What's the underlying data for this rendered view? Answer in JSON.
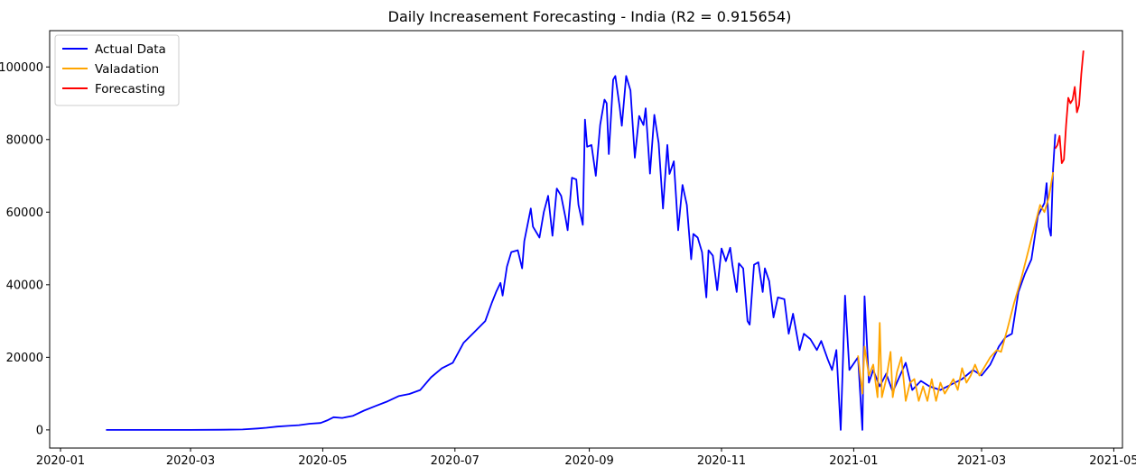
{
  "chart_data": {
    "type": "line",
    "title": "Daily Increasement Forecasting - India (R2 = 0.915654)",
    "xlabel": "",
    "ylabel": "",
    "x_range": [
      "2019-12-27",
      "2021-05-05"
    ],
    "ylim": [
      -5000,
      110000
    ],
    "x_ticks": [
      "2020-01",
      "2020-03",
      "2020-05",
      "2020-07",
      "2020-09",
      "2020-11",
      "2021-01",
      "2021-03",
      "2021-05"
    ],
    "y_ticks": [
      0,
      20000,
      40000,
      60000,
      80000,
      100000
    ],
    "grid": false,
    "legend_placement": "top-left",
    "series": [
      {
        "name": "Actual Data",
        "color": "#0000ff",
        "points": [
          [
            "2020-01-22",
            0
          ],
          [
            "2020-02-15",
            0
          ],
          [
            "2020-03-01",
            0
          ],
          [
            "2020-03-15",
            50
          ],
          [
            "2020-03-25",
            120
          ],
          [
            "2020-04-01",
            400
          ],
          [
            "2020-04-05",
            600
          ],
          [
            "2020-04-10",
            900
          ],
          [
            "2020-04-15",
            1100
          ],
          [
            "2020-04-20",
            1300
          ],
          [
            "2020-04-25",
            1700
          ],
          [
            "2020-04-30",
            1900
          ],
          [
            "2020-05-03",
            2600
          ],
          [
            "2020-05-06",
            3500
          ],
          [
            "2020-05-10",
            3300
          ],
          [
            "2020-05-15",
            3900
          ],
          [
            "2020-05-20",
            5300
          ],
          [
            "2020-05-25",
            6500
          ],
          [
            "2020-05-31",
            7900
          ],
          [
            "2020-06-05",
            9300
          ],
          [
            "2020-06-10",
            9900
          ],
          [
            "2020-06-15",
            11000
          ],
          [
            "2020-06-20",
            14500
          ],
          [
            "2020-06-25",
            17000
          ],
          [
            "2020-06-30",
            18500
          ],
          [
            "2020-07-05",
            24000
          ],
          [
            "2020-07-10",
            27000
          ],
          [
            "2020-07-15",
            30000
          ],
          [
            "2020-07-18",
            35000
          ],
          [
            "2020-07-20",
            38000
          ],
          [
            "2020-07-22",
            40500
          ],
          [
            "2020-07-23",
            37000
          ],
          [
            "2020-07-25",
            45000
          ],
          [
            "2020-07-27",
            49000
          ],
          [
            "2020-07-30",
            49500
          ],
          [
            "2020-08-01",
            44500
          ],
          [
            "2020-08-02",
            52000
          ],
          [
            "2020-08-05",
            61000
          ],
          [
            "2020-08-06",
            56000
          ],
          [
            "2020-08-09",
            53000
          ],
          [
            "2020-08-11",
            60000
          ],
          [
            "2020-08-13",
            64500
          ],
          [
            "2020-08-15",
            53500
          ],
          [
            "2020-08-17",
            66500
          ],
          [
            "2020-08-19",
            64500
          ],
          [
            "2020-08-21",
            58500
          ],
          [
            "2020-08-22",
            55000
          ],
          [
            "2020-08-24",
            69500
          ],
          [
            "2020-08-26",
            69000
          ],
          [
            "2020-08-27",
            62000
          ],
          [
            "2020-08-29",
            56500
          ],
          [
            "2020-08-30",
            85500
          ],
          [
            "2020-08-31",
            78000
          ],
          [
            "2020-09-02",
            78500
          ],
          [
            "2020-09-04",
            70000
          ],
          [
            "2020-09-06",
            84000
          ],
          [
            "2020-09-08",
            91000
          ],
          [
            "2020-09-09",
            90000
          ],
          [
            "2020-09-10",
            76000
          ],
          [
            "2020-09-12",
            96500
          ],
          [
            "2020-09-13",
            97500
          ],
          [
            "2020-09-15",
            89000
          ],
          [
            "2020-09-16",
            83800
          ],
          [
            "2020-09-18",
            97500
          ],
          [
            "2020-09-20",
            93500
          ],
          [
            "2020-09-22",
            75000
          ],
          [
            "2020-09-24",
            86500
          ],
          [
            "2020-09-26",
            84000
          ],
          [
            "2020-09-27",
            88600
          ],
          [
            "2020-09-29",
            70600
          ],
          [
            "2020-10-01",
            86800
          ],
          [
            "2020-10-03",
            79000
          ],
          [
            "2020-10-05",
            61000
          ],
          [
            "2020-10-07",
            78500
          ],
          [
            "2020-10-08",
            70500
          ],
          [
            "2020-10-10",
            74000
          ],
          [
            "2020-10-12",
            55000
          ],
          [
            "2020-10-14",
            67500
          ],
          [
            "2020-10-16",
            62000
          ],
          [
            "2020-10-18",
            47000
          ],
          [
            "2020-10-19",
            54000
          ],
          [
            "2020-10-21",
            53000
          ],
          [
            "2020-10-23",
            49000
          ],
          [
            "2020-10-25",
            36500
          ],
          [
            "2020-10-26",
            49500
          ],
          [
            "2020-10-28",
            48000
          ],
          [
            "2020-10-30",
            38500
          ],
          [
            "2020-11-01",
            50000
          ],
          [
            "2020-11-03",
            46500
          ],
          [
            "2020-11-05",
            50200
          ],
          [
            "2020-11-06",
            45600
          ],
          [
            "2020-11-08",
            38000
          ],
          [
            "2020-11-09",
            45900
          ],
          [
            "2020-11-11",
            44500
          ],
          [
            "2020-11-13",
            30000
          ],
          [
            "2020-11-14",
            29000
          ],
          [
            "2020-11-16",
            45500
          ],
          [
            "2020-11-18",
            46200
          ],
          [
            "2020-11-20",
            38000
          ],
          [
            "2020-11-21",
            44500
          ],
          [
            "2020-11-23",
            41000
          ],
          [
            "2020-11-25",
            31000
          ],
          [
            "2020-11-27",
            36500
          ],
          [
            "2020-11-30",
            36000
          ],
          [
            "2020-12-02",
            26500
          ],
          [
            "2020-12-04",
            32000
          ],
          [
            "2020-12-07",
            22000
          ],
          [
            "2020-12-09",
            26500
          ],
          [
            "2020-12-12",
            25000
          ],
          [
            "2020-12-15",
            22000
          ],
          [
            "2020-12-17",
            24500
          ],
          [
            "2020-12-20",
            19500
          ],
          [
            "2020-12-22",
            16500
          ],
          [
            "2020-12-24",
            22000
          ],
          [
            "2020-12-26",
            0
          ],
          [
            "2020-12-28",
            37000
          ],
          [
            "2020-12-30",
            16500
          ],
          [
            "2021-01-03",
            20000
          ],
          [
            "2021-01-05",
            0
          ],
          [
            "2021-01-06",
            36800
          ],
          [
            "2021-01-08",
            13000
          ],
          [
            "2021-01-10",
            16500
          ],
          [
            "2021-01-13",
            12000
          ],
          [
            "2021-01-16",
            15500
          ],
          [
            "2021-01-19",
            10500
          ],
          [
            "2021-01-22",
            14500
          ],
          [
            "2021-01-25",
            18500
          ],
          [
            "2021-01-28",
            11000
          ],
          [
            "2021-02-01",
            13500
          ],
          [
            "2021-02-05",
            12000
          ],
          [
            "2021-02-10",
            11000
          ],
          [
            "2021-02-15",
            12500
          ],
          [
            "2021-02-20",
            14000
          ],
          [
            "2021-02-25",
            16500
          ],
          [
            "2021-03-01",
            15000
          ],
          [
            "2021-03-05",
            18000
          ],
          [
            "2021-03-09",
            23000
          ],
          [
            "2021-03-12",
            25500
          ],
          [
            "2021-03-15",
            26500
          ],
          [
            "2021-03-18",
            38000
          ],
          [
            "2021-03-21",
            43000
          ],
          [
            "2021-03-24",
            47000
          ],
          [
            "2021-03-27",
            59000
          ],
          [
            "2021-03-30",
            62500
          ],
          [
            "2021-03-31",
            68000
          ],
          [
            "2021-04-01",
            56000
          ],
          [
            "2021-04-02",
            53500
          ],
          [
            "2021-04-03",
            72000
          ],
          [
            "2021-04-04",
            81500
          ]
        ]
      },
      {
        "name": "Valadation",
        "color": "#ffa500",
        "points": [
          [
            "2021-01-03",
            20500
          ],
          [
            "2021-01-04",
            15000
          ],
          [
            "2021-01-05",
            10000
          ],
          [
            "2021-01-06",
            23000
          ],
          [
            "2021-01-08",
            15000
          ],
          [
            "2021-01-10",
            18000
          ],
          [
            "2021-01-12",
            9000
          ],
          [
            "2021-01-13",
            29500
          ],
          [
            "2021-01-14",
            9000
          ],
          [
            "2021-01-16",
            14000
          ],
          [
            "2021-01-18",
            21500
          ],
          [
            "2021-01-19",
            9000
          ],
          [
            "2021-01-21",
            16000
          ],
          [
            "2021-01-23",
            20000
          ],
          [
            "2021-01-25",
            8000
          ],
          [
            "2021-01-27",
            13000
          ],
          [
            "2021-01-29",
            14000
          ],
          [
            "2021-01-31",
            8000
          ],
          [
            "2021-02-02",
            12000
          ],
          [
            "2021-02-04",
            8000
          ],
          [
            "2021-02-06",
            14000
          ],
          [
            "2021-02-08",
            8000
          ],
          [
            "2021-02-10",
            13000
          ],
          [
            "2021-02-12",
            10000
          ],
          [
            "2021-02-14",
            12000
          ],
          [
            "2021-02-16",
            14000
          ],
          [
            "2021-02-18",
            11000
          ],
          [
            "2021-02-20",
            17000
          ],
          [
            "2021-02-22",
            13000
          ],
          [
            "2021-02-24",
            15000
          ],
          [
            "2021-02-26",
            18000
          ],
          [
            "2021-02-28",
            15000
          ],
          [
            "2021-03-02",
            17000
          ],
          [
            "2021-03-05",
            20000
          ],
          [
            "2021-03-08",
            22000
          ],
          [
            "2021-03-10",
            21500
          ],
          [
            "2021-03-13",
            28000
          ],
          [
            "2021-03-16",
            35000
          ],
          [
            "2021-03-19",
            41000
          ],
          [
            "2021-03-22",
            48000
          ],
          [
            "2021-03-25",
            55000
          ],
          [
            "2021-03-28",
            62000
          ],
          [
            "2021-03-30",
            60000
          ],
          [
            "2021-04-01",
            64000
          ],
          [
            "2021-04-03",
            71000
          ]
        ]
      },
      {
        "name": "Forecasting",
        "color": "#ff0000",
        "points": [
          [
            "2021-04-04",
            77500
          ],
          [
            "2021-04-05",
            78500
          ],
          [
            "2021-04-06",
            81000
          ],
          [
            "2021-04-07",
            73500
          ],
          [
            "2021-04-08",
            74500
          ],
          [
            "2021-04-09",
            84000
          ],
          [
            "2021-04-10",
            91500
          ],
          [
            "2021-04-11",
            90000
          ],
          [
            "2021-04-12",
            91000
          ],
          [
            "2021-04-13",
            94500
          ],
          [
            "2021-04-14",
            87500
          ],
          [
            "2021-04-15",
            89500
          ],
          [
            "2021-04-16",
            98000
          ],
          [
            "2021-04-17",
            104500
          ]
        ]
      }
    ]
  }
}
